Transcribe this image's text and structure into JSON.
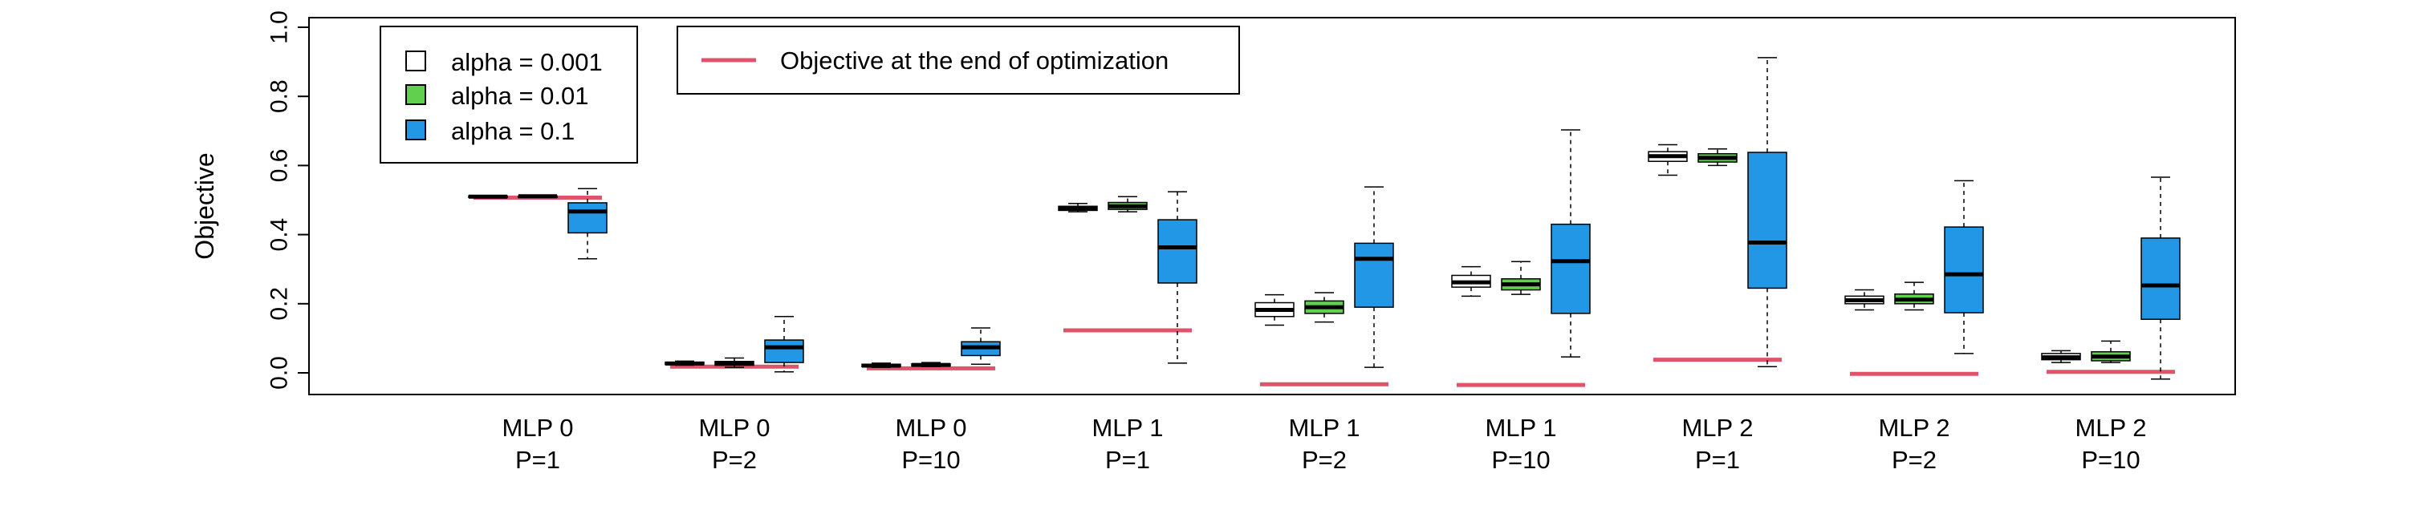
{
  "chart_data": {
    "type": "boxplot",
    "ylabel": "Objective",
    "ylim": [
      -0.06,
      1.02
    ],
    "yticks": [
      0.0,
      0.2,
      0.4,
      0.6,
      0.8,
      1.0
    ],
    "ytick_labels": [
      "0.0",
      "0.2",
      "0.4",
      "0.6",
      "0.8",
      "1.0"
    ],
    "categories": [
      {
        "line1": "MLP 0",
        "line2": "P=1"
      },
      {
        "line1": "MLP 0",
        "line2": "P=2"
      },
      {
        "line1": "MLP 0",
        "line2": "P=10"
      },
      {
        "line1": "MLP 1",
        "line2": "P=1"
      },
      {
        "line1": "MLP 1",
        "line2": "P=2"
      },
      {
        "line1": "MLP 1",
        "line2": "P=10"
      },
      {
        "line1": "MLP 2",
        "line2": "P=1"
      },
      {
        "line1": "MLP 2",
        "line2": "P=2"
      },
      {
        "line1": "MLP 2",
        "line2": "P=10"
      }
    ],
    "series": [
      {
        "name": "alpha = 0.001",
        "color": "#ffffff",
        "boxes": [
          {
            "min": 0.508,
            "q1": 0.508,
            "median": 0.51,
            "q3": 0.512,
            "max": 0.513
          },
          {
            "min": 0.022,
            "q1": 0.024,
            "median": 0.027,
            "q3": 0.031,
            "max": 0.034
          },
          {
            "min": 0.016,
            "q1": 0.018,
            "median": 0.021,
            "q3": 0.025,
            "max": 0.028
          },
          {
            "min": 0.466,
            "q1": 0.47,
            "median": 0.475,
            "q3": 0.482,
            "max": 0.49
          },
          {
            "min": 0.138,
            "q1": 0.163,
            "median": 0.182,
            "q3": 0.203,
            "max": 0.226
          },
          {
            "min": 0.222,
            "q1": 0.248,
            "median": 0.262,
            "q3": 0.282,
            "max": 0.307
          },
          {
            "min": 0.572,
            "q1": 0.612,
            "median": 0.627,
            "q3": 0.64,
            "max": 0.66
          },
          {
            "min": 0.182,
            "q1": 0.2,
            "median": 0.21,
            "q3": 0.222,
            "max": 0.24
          },
          {
            "min": 0.03,
            "q1": 0.038,
            "median": 0.045,
            "q3": 0.056,
            "max": 0.064
          }
        ]
      },
      {
        "name": "alpha = 0.01",
        "color": "#61d04f",
        "boxes": [
          {
            "min": 0.508,
            "q1": 0.509,
            "median": 0.511,
            "q3": 0.512,
            "max": 0.514
          },
          {
            "min": 0.016,
            "q1": 0.022,
            "median": 0.027,
            "q3": 0.033,
            "max": 0.043
          },
          {
            "min": 0.018,
            "q1": 0.02,
            "median": 0.023,
            "q3": 0.026,
            "max": 0.03
          },
          {
            "min": 0.466,
            "q1": 0.473,
            "median": 0.482,
            "q3": 0.493,
            "max": 0.51
          },
          {
            "min": 0.147,
            "q1": 0.172,
            "median": 0.19,
            "q3": 0.208,
            "max": 0.232
          },
          {
            "min": 0.227,
            "q1": 0.24,
            "median": 0.256,
            "q3": 0.272,
            "max": 0.322
          },
          {
            "min": 0.6,
            "q1": 0.61,
            "median": 0.622,
            "q3": 0.634,
            "max": 0.648
          },
          {
            "min": 0.182,
            "q1": 0.2,
            "median": 0.212,
            "q3": 0.228,
            "max": 0.262
          },
          {
            "min": 0.03,
            "q1": 0.035,
            "median": 0.047,
            "q3": 0.061,
            "max": 0.092
          }
        ]
      },
      {
        "name": "alpha = 0.1",
        "color": "#2297e6",
        "boxes": [
          {
            "min": 0.33,
            "q1": 0.405,
            "median": 0.467,
            "q3": 0.492,
            "max": 0.533
          },
          {
            "min": 0.003,
            "q1": 0.03,
            "median": 0.074,
            "q3": 0.095,
            "max": 0.163
          },
          {
            "min": 0.025,
            "q1": 0.05,
            "median": 0.074,
            "q3": 0.09,
            "max": 0.13
          },
          {
            "min": 0.028,
            "q1": 0.26,
            "median": 0.363,
            "q3": 0.443,
            "max": 0.524
          },
          {
            "min": 0.016,
            "q1": 0.19,
            "median": 0.33,
            "q3": 0.375,
            "max": 0.538
          },
          {
            "min": 0.046,
            "q1": 0.172,
            "median": 0.323,
            "q3": 0.43,
            "max": 0.703
          },
          {
            "min": 0.018,
            "q1": 0.245,
            "median": 0.377,
            "q3": 0.638,
            "max": 0.912
          },
          {
            "min": 0.056,
            "q1": 0.174,
            "median": 0.285,
            "q3": 0.422,
            "max": 0.556
          },
          {
            "min": -0.018,
            "q1": 0.155,
            "median": 0.253,
            "q3": 0.39,
            "max": 0.566
          }
        ]
      }
    ],
    "reference_line": {
      "name": "Objective at the end of optimization",
      "color": "#df536b",
      "values": [
        0.507,
        0.018,
        0.013,
        0.123,
        -0.033,
        -0.035,
        0.038,
        -0.003,
        0.003
      ]
    },
    "legends": [
      {
        "position": "top-left",
        "entries": [
          "alpha = 0.001",
          "alpha = 0.01",
          "alpha = 0.1"
        ]
      },
      {
        "position": "top-center-left",
        "entries": [
          "Objective at the end of optimization"
        ]
      }
    ],
    "grid": false
  }
}
